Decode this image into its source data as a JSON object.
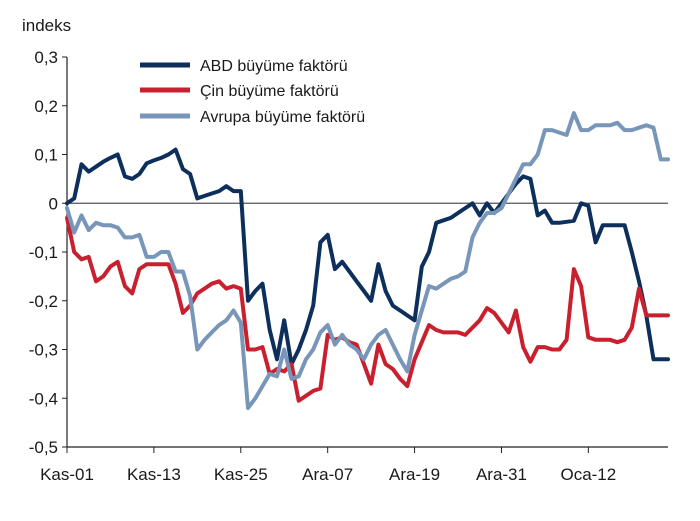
{
  "chart_data": {
    "type": "line",
    "title": "",
    "unit_label": "indeks",
    "xlabel": "",
    "ylabel": "",
    "ylim": [
      -0.5,
      0.3
    ],
    "yticks": [
      -0.5,
      -0.4,
      -0.3,
      -0.2,
      -0.1,
      0,
      0.1,
      0.2,
      0.3
    ],
    "ytick_labels": [
      "-0,5",
      "-0,4",
      "-0,3",
      "-0,2",
      "-0,1",
      "0",
      "0,1",
      "0,2",
      "0,3"
    ],
    "x_tick_positions": [
      0,
      12,
      24,
      36,
      48,
      60,
      72
    ],
    "x_tick_labels": [
      "Kas-01",
      "Kas-13",
      "Kas-25",
      "Ara-07",
      "Ara-19",
      "Ara-31",
      "Oca-12"
    ],
    "xlim": [
      0,
      83
    ],
    "grid": false,
    "legend_position": "top-center",
    "series": [
      {
        "name": "ABD büyüme faktörü",
        "color": "#0d2f5c",
        "x": [
          0,
          1,
          2,
          3,
          4,
          5,
          6,
          7,
          8,
          9,
          10,
          11,
          12,
          13,
          14,
          15,
          16,
          17,
          18,
          19,
          20,
          21,
          22,
          23,
          24,
          25,
          26,
          27,
          28,
          29,
          30,
          31,
          32,
          33,
          34,
          35,
          36,
          37,
          38,
          39,
          40,
          41,
          42,
          43,
          44,
          45,
          46,
          47,
          48,
          49,
          50,
          51,
          52,
          53,
          54,
          55,
          56,
          57,
          58,
          59,
          60,
          61,
          62,
          63,
          64,
          65,
          66,
          67,
          68,
          69,
          70,
          71,
          72,
          73,
          74,
          75,
          76,
          77,
          78,
          79,
          80,
          81,
          82,
          83
        ],
        "values": [
          0,
          0.01,
          0.08,
          0.065,
          0.075,
          0.085,
          0.093,
          0.1,
          0.055,
          0.05,
          0.06,
          0.082,
          0.088,
          0.093,
          0.1,
          0.11,
          0.07,
          0.06,
          0.01,
          0.015,
          0.02,
          0.025,
          0.035,
          0.025,
          0.025,
          -0.2,
          -0.18,
          -0.165,
          -0.26,
          -0.32,
          -0.24,
          -0.33,
          -0.3,
          -0.26,
          -0.21,
          -0.08,
          -0.065,
          -0.135,
          -0.12,
          -0.14,
          -0.16,
          -0.18,
          -0.2,
          -0.125,
          -0.18,
          -0.21,
          -0.22,
          -0.23,
          -0.24,
          -0.13,
          -0.1,
          -0.04,
          -0.035,
          -0.03,
          -0.02,
          -0.01,
          0,
          -0.025,
          0,
          -0.02,
          0,
          0.02,
          0.04,
          0.055,
          0.05,
          -0.025,
          -0.015,
          -0.04,
          -0.04,
          -0.038,
          -0.036,
          0,
          -0.005,
          -0.08,
          -0.045,
          -0.045,
          -0.045,
          -0.045,
          -0.1,
          -0.16,
          -0.23,
          -0.32,
          -0.32,
          -0.32
        ]
      },
      {
        "name": "Çin büyüme faktörü",
        "color": "#c8202e",
        "x": [
          0,
          1,
          2,
          3,
          4,
          5,
          6,
          7,
          8,
          9,
          10,
          11,
          12,
          13,
          14,
          15,
          16,
          17,
          18,
          19,
          20,
          21,
          22,
          23,
          24,
          25,
          26,
          27,
          28,
          29,
          30,
          31,
          32,
          33,
          34,
          35,
          36,
          37,
          38,
          39,
          40,
          41,
          42,
          43,
          44,
          45,
          46,
          47,
          48,
          49,
          50,
          51,
          52,
          53,
          54,
          55,
          56,
          57,
          58,
          59,
          60,
          61,
          62,
          63,
          64,
          65,
          66,
          67,
          68,
          69,
          70,
          71,
          72,
          73,
          74,
          75,
          76,
          77,
          78,
          79,
          80,
          81,
          82,
          83
        ],
        "values": [
          -0.03,
          -0.1,
          -0.115,
          -0.11,
          -0.16,
          -0.15,
          -0.13,
          -0.12,
          -0.17,
          -0.185,
          -0.135,
          -0.125,
          -0.125,
          -0.125,
          -0.125,
          -0.165,
          -0.225,
          -0.21,
          -0.185,
          -0.175,
          -0.165,
          -0.16,
          -0.175,
          -0.17,
          -0.175,
          -0.3,
          -0.3,
          -0.295,
          -0.35,
          -0.34,
          -0.345,
          -0.33,
          -0.405,
          -0.395,
          -0.385,
          -0.38,
          -0.27,
          -0.28,
          -0.275,
          -0.285,
          -0.29,
          -0.33,
          -0.37,
          -0.29,
          -0.33,
          -0.34,
          -0.36,
          -0.375,
          -0.32,
          -0.285,
          -0.25,
          -0.26,
          -0.265,
          -0.265,
          -0.265,
          -0.27,
          -0.255,
          -0.24,
          -0.215,
          -0.225,
          -0.245,
          -0.265,
          -0.22,
          -0.295,
          -0.325,
          -0.295,
          -0.295,
          -0.3,
          -0.3,
          -0.28,
          -0.135,
          -0.17,
          -0.275,
          -0.28,
          -0.28,
          -0.28,
          -0.285,
          -0.28,
          -0.255,
          -0.175,
          -0.23,
          -0.23,
          -0.23,
          -0.23
        ]
      },
      {
        "name": "Avrupa büyüme faktörü",
        "color": "#7896b9",
        "x": [
          0,
          1,
          2,
          3,
          4,
          5,
          6,
          7,
          8,
          9,
          10,
          11,
          12,
          13,
          14,
          15,
          16,
          17,
          18,
          19,
          20,
          21,
          22,
          23,
          24,
          25,
          26,
          27,
          28,
          29,
          30,
          31,
          32,
          33,
          34,
          35,
          36,
          37,
          38,
          39,
          40,
          41,
          42,
          43,
          44,
          45,
          46,
          47,
          48,
          49,
          50,
          51,
          52,
          53,
          54,
          55,
          56,
          57,
          58,
          59,
          60,
          61,
          62,
          63,
          64,
          65,
          66,
          67,
          68,
          69,
          70,
          71,
          72,
          73,
          74,
          75,
          76,
          77,
          78,
          79,
          80,
          81,
          82,
          83
        ],
        "values": [
          -0.01,
          -0.06,
          -0.025,
          -0.055,
          -0.04,
          -0.045,
          -0.045,
          -0.05,
          -0.07,
          -0.07,
          -0.065,
          -0.11,
          -0.11,
          -0.1,
          -0.1,
          -0.14,
          -0.14,
          -0.19,
          -0.3,
          -0.28,
          -0.265,
          -0.25,
          -0.24,
          -0.22,
          -0.245,
          -0.42,
          -0.4,
          -0.375,
          -0.35,
          -0.355,
          -0.3,
          -0.36,
          -0.355,
          -0.32,
          -0.3,
          -0.265,
          -0.25,
          -0.29,
          -0.27,
          -0.29,
          -0.3,
          -0.32,
          -0.29,
          -0.27,
          -0.26,
          -0.29,
          -0.32,
          -0.345,
          -0.27,
          -0.22,
          -0.17,
          -0.175,
          -0.165,
          -0.155,
          -0.15,
          -0.14,
          -0.07,
          -0.04,
          -0.02,
          -0.02,
          -0.01,
          0.02,
          0.05,
          0.08,
          0.08,
          0.1,
          0.15,
          0.15,
          0.145,
          0.14,
          0.185,
          0.15,
          0.15,
          0.16,
          0.16,
          0.16,
          0.165,
          0.15,
          0.15,
          0.155,
          0.16,
          0.155,
          0.09,
          0.09
        ]
      }
    ]
  }
}
